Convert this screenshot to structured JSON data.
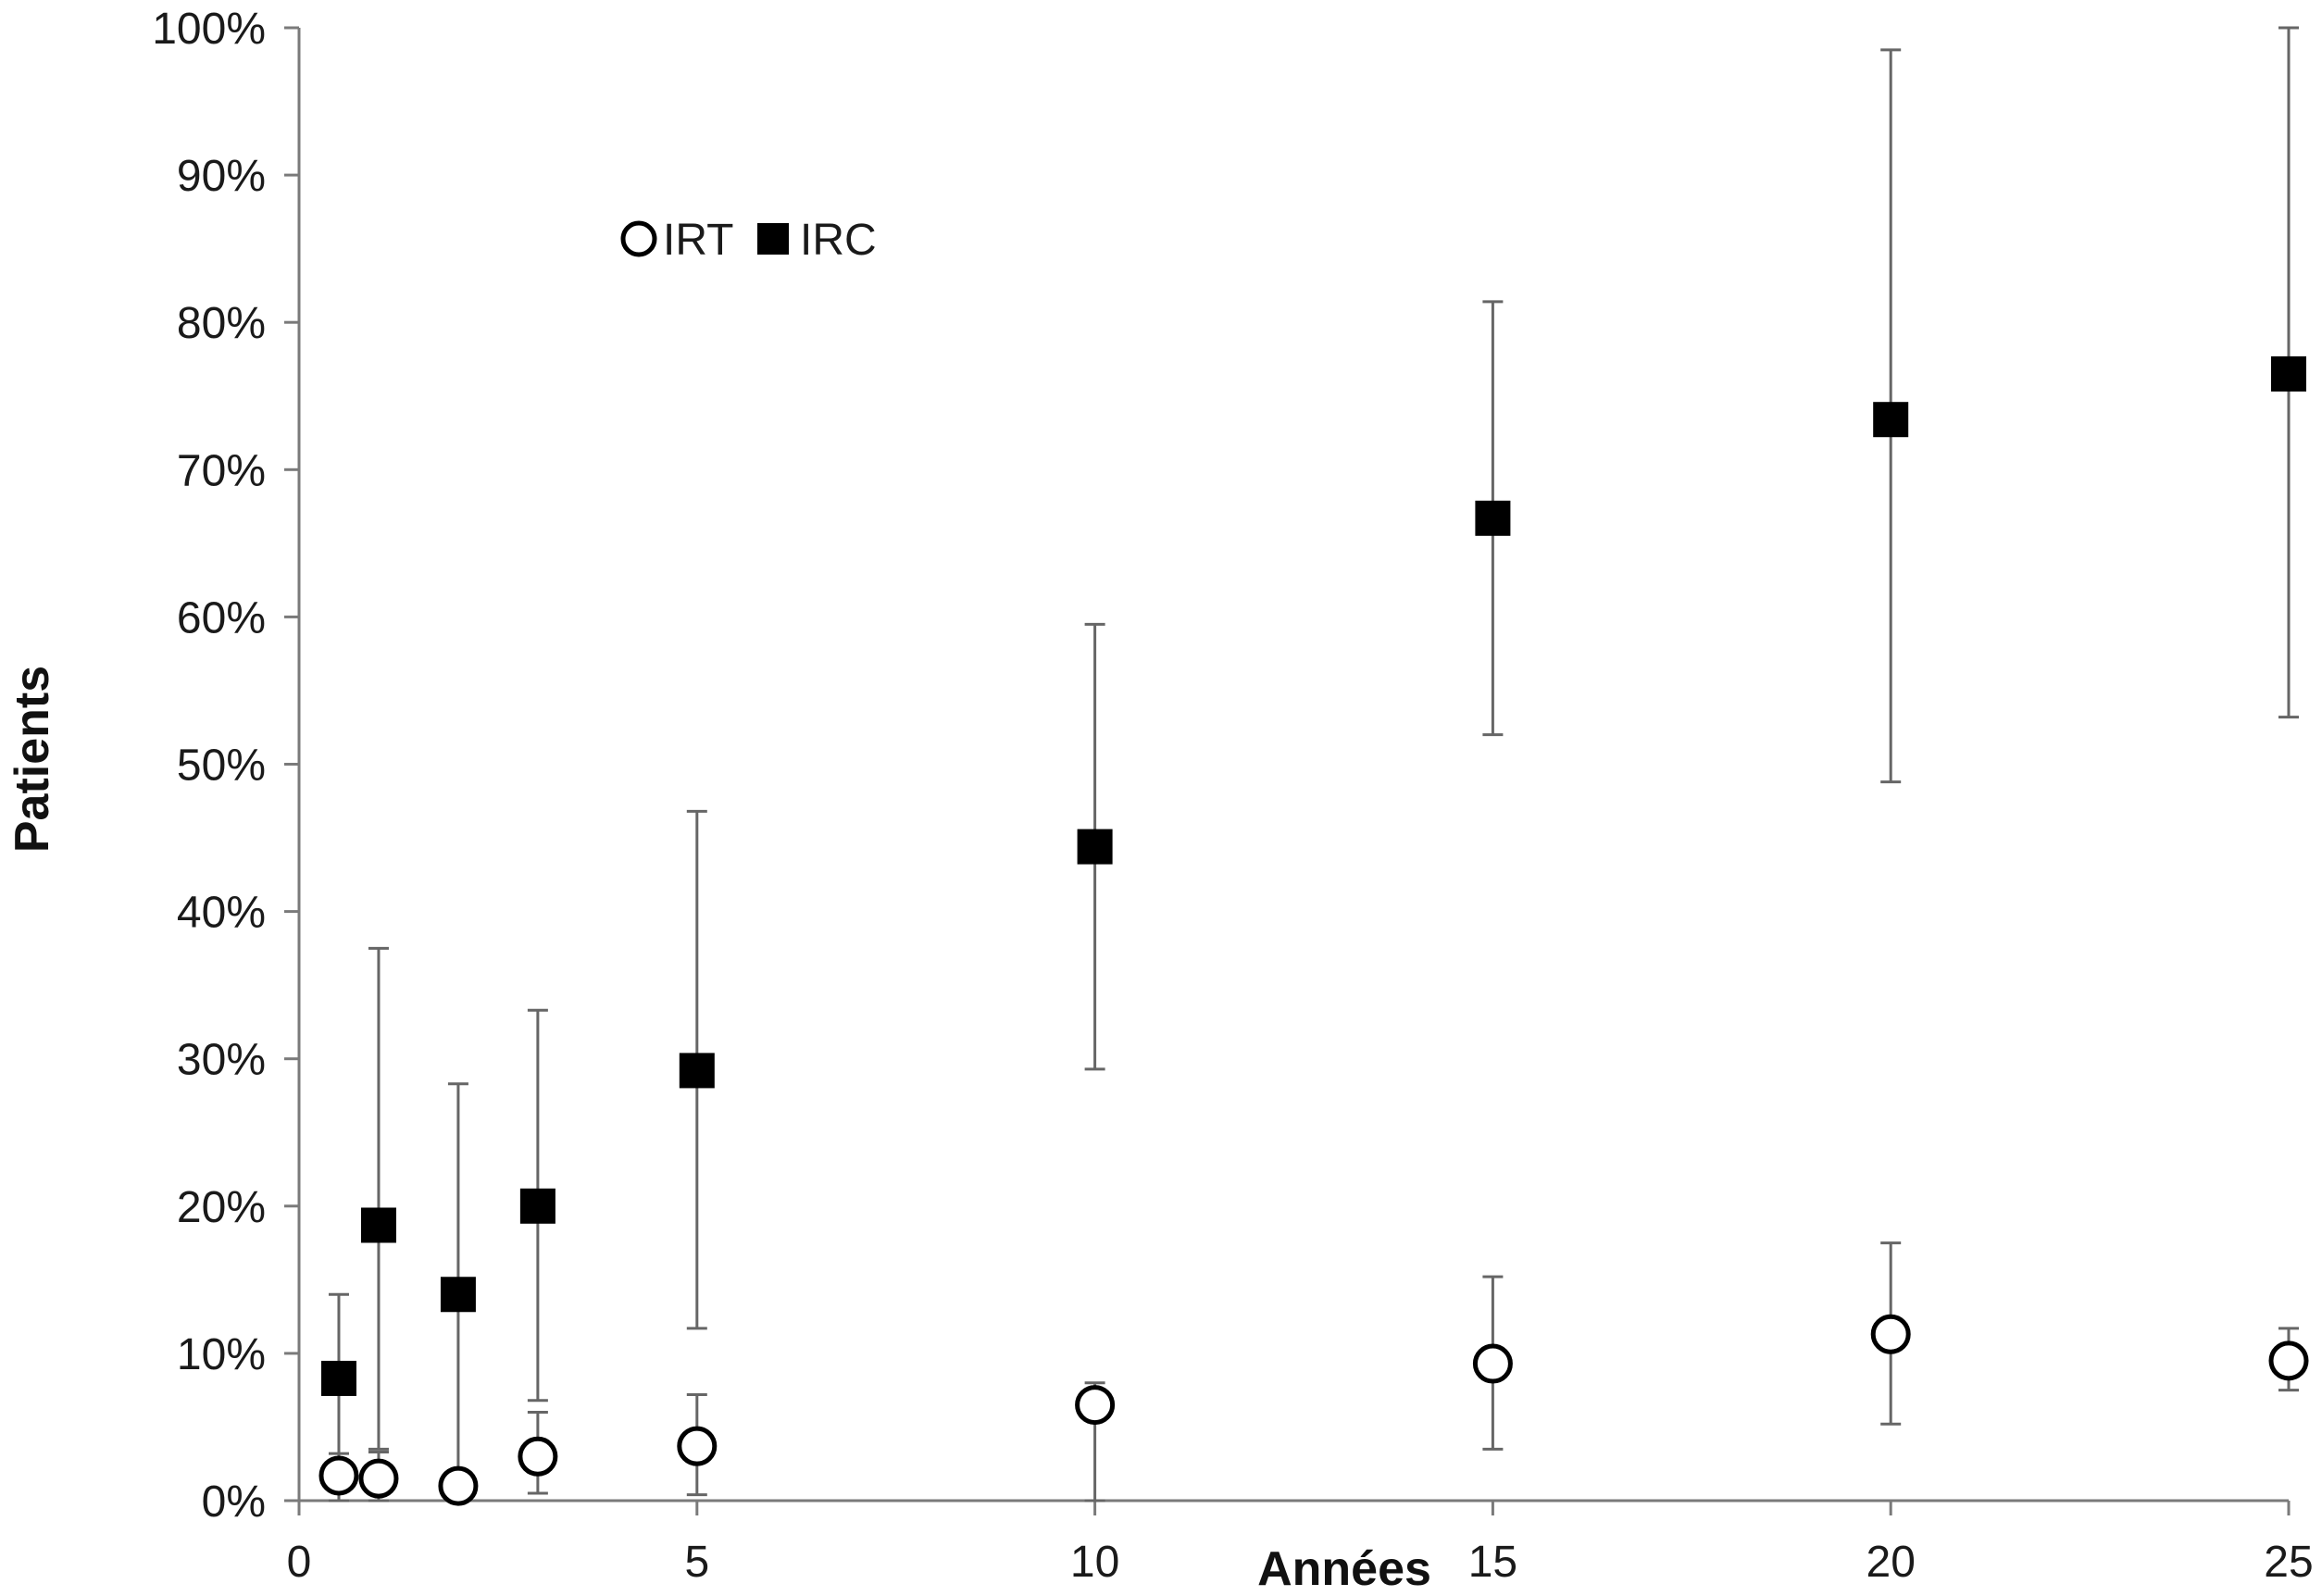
{
  "chart_data": {
    "type": "scatter",
    "xlabel": "Années",
    "ylabel": "Patients",
    "xlim": [
      0,
      25
    ],
    "ylim": [
      0,
      100
    ],
    "x_ticks": [
      0,
      5,
      10,
      15,
      20,
      25
    ],
    "x_tick_labels": [
      "0",
      "5",
      "10",
      "15",
      "20",
      "25"
    ],
    "y_ticks": [
      0,
      10,
      20,
      30,
      40,
      50,
      60,
      70,
      80,
      90,
      100
    ],
    "y_tick_labels": [
      "0%",
      "10%",
      "20%",
      "30%",
      "40%",
      "50%",
      "60%",
      "70%",
      "80%",
      "90%",
      "100%"
    ],
    "grid": false,
    "error_bars": true,
    "legend_position": "top-left",
    "series": [
      {
        "name": "IRT",
        "marker": "open-circle",
        "color": "#000000",
        "fill": "#ffffff",
        "points": [
          {
            "x": 0.5,
            "y": 1.7,
            "err_low": 0.0,
            "err_high": 3.2
          },
          {
            "x": 1,
            "y": 1.5,
            "err_low": 0.0,
            "err_high": 3.3
          },
          {
            "x": 2,
            "y": 1.0,
            "err_low": 0.0,
            "err_high": 0.0
          },
          {
            "x": 3,
            "y": 3.0,
            "err_low": 0.5,
            "err_high": 6.0
          },
          {
            "x": 5,
            "y": 3.7,
            "err_low": 0.4,
            "err_high": 7.2
          },
          {
            "x": 10,
            "y": 6.5,
            "err_low": 0.0,
            "err_high": 8.0
          },
          {
            "x": 15,
            "y": 9.3,
            "err_low": 3.5,
            "err_high": 15.2
          },
          {
            "x": 20,
            "y": 11.3,
            "err_low": 5.2,
            "err_high": 17.5
          },
          {
            "x": 25,
            "y": 9.5,
            "err_low": 7.5,
            "err_high": 11.7
          }
        ]
      },
      {
        "name": "IRC",
        "marker": "filled-square",
        "color": "#000000",
        "fill": "#000000",
        "points": [
          {
            "x": 0.5,
            "y": 8.3,
            "err_low": 0.0,
            "err_high": 14.0
          },
          {
            "x": 1,
            "y": 18.7,
            "err_low": 3.5,
            "err_high": 37.5
          },
          {
            "x": 2,
            "y": 14.0,
            "err_low": 0.0,
            "err_high": 28.3
          },
          {
            "x": 3,
            "y": 20.0,
            "err_low": 6.8,
            "err_high": 33.3
          },
          {
            "x": 5,
            "y": 29.2,
            "err_low": 11.7,
            "err_high": 46.8
          },
          {
            "x": 10,
            "y": 44.4,
            "err_low": 29.3,
            "err_high": 59.5
          },
          {
            "x": 15,
            "y": 66.7,
            "err_low": 52.0,
            "err_high": 81.4
          },
          {
            "x": 20,
            "y": 73.4,
            "err_low": 48.8,
            "err_high": 98.5
          },
          {
            "x": 25,
            "y": 76.5,
            "err_low": 53.2,
            "err_high": 100.0
          }
        ]
      }
    ]
  }
}
